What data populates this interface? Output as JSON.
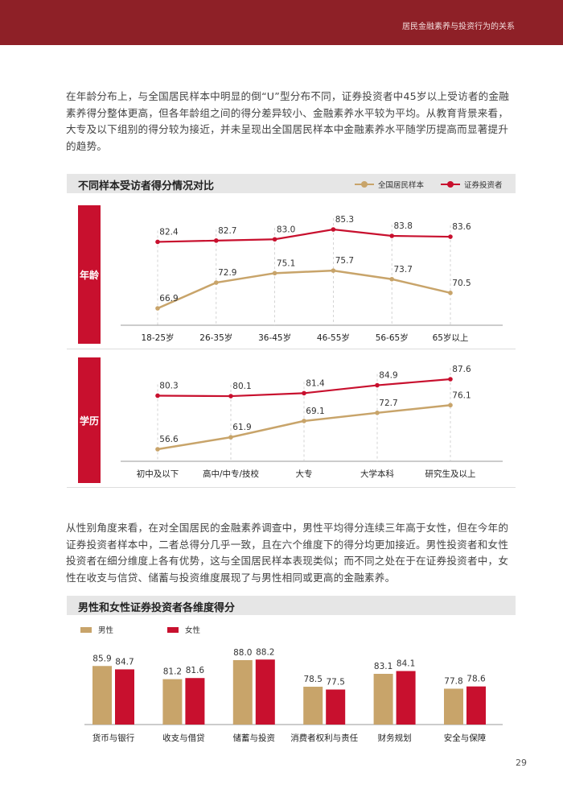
{
  "header": {
    "title": "居民金融素养与投资行为的关系"
  },
  "paragraphs": {
    "p1": "在年龄分布上，与全国居民样本中明显的倒“U”型分布不同，证券投资者中45岁以上受访者的金融素养得分整体更高，但各年龄组之间的得分差异较小、金融素养水平较为平均。从教育背景来看，大专及以下组别的得分较为接近，并未呈现出全国居民样本中金融素养水平随学历提高而显著提升的趋势。",
    "p2": "从性别角度来看，在对全国居民的金融素养调查中，男性平均得分连续三年高于女性，但在今年的证券投资者样本中，二者总得分几乎一致，且在六个维度下的得分均更加接近。男性投资者和女性投资者在细分维度上各有优势，这与全国居民样本表现类似；而不同之处在于在证券投资者中，女性在收支与信贷、储蓄与投资维度展现了与男性相同或更高的金融素养。"
  },
  "chart1": {
    "title": "不同样本受访者得分情况对比",
    "legend": {
      "national": "全国居民样本",
      "investor": "证券投资者"
    },
    "row_labels": {
      "age": "年龄",
      "edu": "学历"
    }
  },
  "chart2": {
    "title": "男性和女性证券投资者各维度得分",
    "legend": {
      "male": "男性",
      "female": "女性"
    }
  },
  "colors": {
    "gold": "#c8a46a",
    "red": "#c8102e",
    "dark_red": "#8e2027"
  },
  "chart_data": [
    {
      "type": "line",
      "title": "不同样本受访者得分情况对比",
      "row_label": "年龄",
      "categories": [
        "18-25岁",
        "26-35岁",
        "36-45岁",
        "46-55岁",
        "56-65岁",
        "65岁以上"
      ],
      "series": [
        {
          "name": "全国居民样本",
          "values": [
            66.9,
            72.9,
            75.1,
            75.7,
            73.7,
            70.5
          ]
        },
        {
          "name": "证券投资者",
          "values": [
            82.4,
            82.7,
            83.0,
            85.3,
            83.8,
            83.6
          ]
        }
      ]
    },
    {
      "type": "line",
      "row_label": "学历",
      "categories": [
        "初中及以下",
        "高中/中专/技校",
        "大专",
        "大学本科",
        "研究生及以上"
      ],
      "series": [
        {
          "name": "全国居民样本",
          "values": [
            56.6,
            61.9,
            69.1,
            72.7,
            76.1
          ]
        },
        {
          "name": "证券投资者",
          "values": [
            80.3,
            80.1,
            81.4,
            84.9,
            87.6
          ]
        }
      ]
    },
    {
      "type": "bar",
      "title": "男性和女性证券投资者各维度得分",
      "categories": [
        "货币与银行",
        "收支与借贷",
        "储蓄与投资",
        "消费者权利与责任",
        "财务规划",
        "安全与保障"
      ],
      "series": [
        {
          "name": "男性",
          "values": [
            85.9,
            81.2,
            88.0,
            78.5,
            83.1,
            77.8
          ]
        },
        {
          "name": "女性",
          "values": [
            84.7,
            81.6,
            88.2,
            77.5,
            84.1,
            78.6
          ]
        }
      ]
    }
  ],
  "page_number": "29"
}
